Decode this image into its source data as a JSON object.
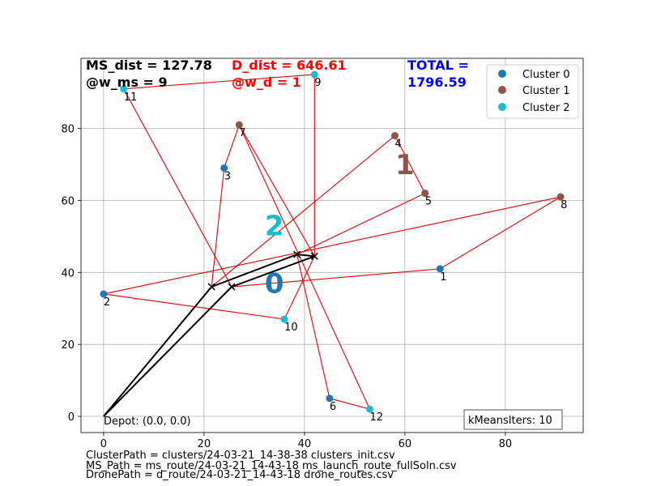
{
  "chart_data": {
    "type": "scatter",
    "xlim": [
      -4.5,
      95.5
    ],
    "ylim": [
      -4.5,
      99.5
    ],
    "xticks": [
      0,
      20,
      40,
      60,
      80
    ],
    "yticks": [
      0,
      20,
      40,
      60,
      80
    ],
    "grid": true,
    "legend_position": "top-right",
    "series": [
      {
        "name": "Cluster 0",
        "color": "#1f77b4",
        "points": [
          {
            "id": "1",
            "x": 67,
            "y": 41
          },
          {
            "id": "2",
            "x": 0,
            "y": 34
          },
          {
            "id": "3",
            "x": 24,
            "y": 69
          },
          {
            "id": "6",
            "x": 45,
            "y": 5
          }
        ]
      },
      {
        "name": "Cluster 1",
        "color": "#8c564b",
        "points": [
          {
            "id": "4",
            "x": 58,
            "y": 78
          },
          {
            "id": "5",
            "x": 64,
            "y": 62
          },
          {
            "id": "7",
            "x": 27,
            "y": 81
          },
          {
            "id": "8",
            "x": 91,
            "y": 61
          }
        ]
      },
      {
        "name": "Cluster 2",
        "color": "#17becf",
        "points": [
          {
            "id": "9",
            "x": 42,
            "y": 95
          },
          {
            "id": "10",
            "x": 36,
            "y": 27
          },
          {
            "id": "11",
            "x": 4,
            "y": 91
          },
          {
            "id": "12",
            "x": 53,
            "y": 2
          }
        ]
      }
    ],
    "cluster_centers": [
      {
        "label": "0",
        "x": 34,
        "y": 37,
        "color": "#1f77b4"
      },
      {
        "label": "1",
        "x": 60,
        "y": 70,
        "color": "#8c564b"
      },
      {
        "label": "2",
        "x": 34,
        "y": 53,
        "color": "#17becf"
      }
    ],
    "launch_points": [
      {
        "x": 21.5,
        "y": 36
      },
      {
        "x": 25.5,
        "y": 36
      },
      {
        "x": 38.5,
        "y": 45
      },
      {
        "x": 42,
        "y": 44.5
      }
    ],
    "ms_route_color": "#000000",
    "ms_routes": [
      [
        [
          0,
          0
        ],
        [
          21.5,
          36
        ],
        [
          38.5,
          45
        ],
        [
          42,
          44.5
        ]
      ],
      [
        [
          0,
          0
        ],
        [
          25.5,
          36
        ],
        [
          42,
          44.5
        ]
      ]
    ],
    "drone_route_color": "#e60000",
    "drone_routes": [
      [
        [
          21.5,
          36
        ],
        [
          24,
          69
        ],
        [
          27,
          81
        ],
        [
          42,
          44.5
        ]
      ],
      [
        [
          21.5,
          36
        ],
        [
          58,
          78
        ],
        [
          64,
          62
        ],
        [
          38.5,
          45
        ]
      ],
      [
        [
          25.5,
          36
        ],
        [
          4,
          91
        ],
        [
          42,
          95
        ],
        [
          42,
          44.5
        ]
      ],
      [
        [
          25.5,
          36
        ],
        [
          67,
          41
        ],
        [
          91,
          61
        ],
        [
          0,
          34
        ],
        [
          36,
          27
        ],
        [
          42,
          44.5
        ]
      ],
      [
        [
          38.5,
          45
        ],
        [
          45,
          5
        ],
        [
          53,
          2
        ],
        [
          27,
          81
        ]
      ]
    ],
    "depot": {
      "x": 0,
      "y": 0,
      "label": "Depot: (0.0, 0.0)"
    },
    "iterations_box": "kMeansIters: 10"
  },
  "metrics": {
    "ms_dist": "MS_dist = 127.78",
    "w_ms": "@w_ms = 9",
    "d_dist": "D_dist = 646.61",
    "w_d": "@w_d = 1",
    "total_label": "TOTAL =",
    "total_value": "1796.59",
    "ms_color": "#000000",
    "d_color": "#ff0000",
    "total_color": "#0000ff"
  },
  "footer": {
    "cluster_path": "ClusterPath = clusters/24-03-21_14-38-38 clusters_init.csv",
    "ms_path": "MS_Path = ms_route/24-03-21_14-43-18 ms_launch_route_fullSoln.csv",
    "drone_path": "DronePath = d_route/24-03-21_14-43-18 drone_routes.csv"
  }
}
